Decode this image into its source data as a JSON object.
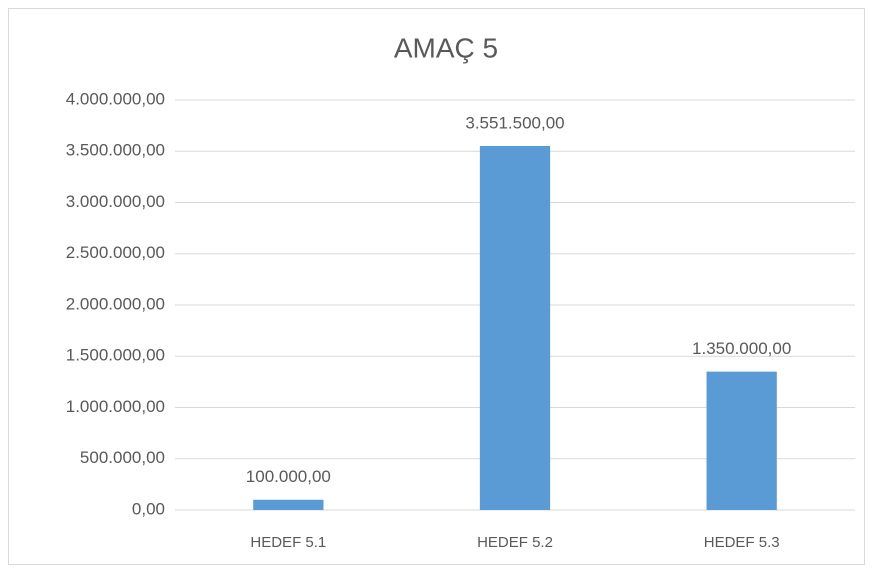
{
  "chart_data": {
    "type": "bar",
    "title": "AMAÇ 5",
    "categories": [
      "HEDEF 5.1",
      "HEDEF 5.2",
      "HEDEF 5.3"
    ],
    "values": [
      100000,
      3551500,
      1350000
    ],
    "value_labels": [
      "100.000,00",
      "3.551.500,00",
      "1.350.000,00"
    ],
    "color": "#5b9bd5",
    "ylim": [
      0,
      4000000
    ],
    "yticks": [
      {
        "value": 0,
        "label": "0,00"
      },
      {
        "value": 500000,
        "label": "500.000,00"
      },
      {
        "value": 1000000,
        "label": "1.000.000,00"
      },
      {
        "value": 1500000,
        "label": "1.500.000,00"
      },
      {
        "value": 2000000,
        "label": "2.000.000,00"
      },
      {
        "value": 2500000,
        "label": "2.500.000,00"
      },
      {
        "value": 3000000,
        "label": "3.000.000,00"
      },
      {
        "value": 3500000,
        "label": "3.500.000,00"
      },
      {
        "value": 4000000,
        "label": "4.000.000,00"
      }
    ],
    "grid": true
  }
}
